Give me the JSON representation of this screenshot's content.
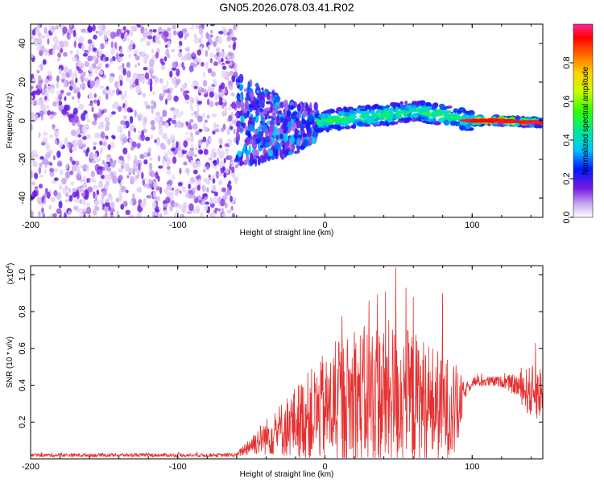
{
  "title": "GN05.2026.078.03.41.R02",
  "colors": {
    "snr_line": "#e53030",
    "axis": "#000000"
  },
  "chart_data": [
    {
      "type": "heatmap",
      "name": "spectrogram",
      "xlabel": "Height of straight line (km)",
      "ylabel": "Frequency (Hz)",
      "xlim": [
        -200,
        148
      ],
      "ylim": [
        -50,
        50
      ],
      "xticks": [
        -200,
        -100,
        0,
        100
      ],
      "xtick_labels": [
        "-200",
        "-100",
        "0",
        "100"
      ],
      "yticks": [
        -40,
        -20,
        0,
        20,
        40
      ],
      "ytick_labels": [
        "-40",
        "-20",
        "0",
        "20",
        "40"
      ],
      "colorbar": {
        "label": "Normalized spectral amplitude",
        "range": [
          0,
          1
        ],
        "ticks": [
          0.0,
          0.2,
          0.4,
          0.6,
          0.8
        ],
        "tick_labels": [
          "0.0",
          "0.2",
          "0.4",
          "0.6",
          "0.8"
        ]
      },
      "regions": [
        {
          "x_range": [
            -200,
            -60
          ],
          "freq_range": [
            -50,
            50
          ],
          "amplitude": "low",
          "description_level": 0.1
        },
        {
          "x_range": [
            -60,
            -10
          ],
          "freq_range": [
            -20,
            25
          ],
          "amplitude": "low-mid",
          "description_level": 0.2
        },
        {
          "x_range": [
            -10,
            100
          ],
          "freq_range": [
            -5,
            8
          ],
          "amplitude": "mid",
          "description_level": 0.35
        },
        {
          "x_range": [
            100,
            148
          ],
          "freq_range": [
            -2,
            2
          ],
          "amplitude": "high",
          "description_level": 0.9
        }
      ],
      "ridge": {
        "x": [
          -60,
          -40,
          -20,
          0,
          20,
          40,
          60,
          80,
          100,
          120,
          148
        ],
        "freq": [
          0,
          -2,
          -4,
          0,
          2,
          3,
          5,
          3,
          0,
          0,
          -1
        ]
      }
    },
    {
      "type": "line",
      "name": "snr",
      "xlabel": "Height of straight line (km)",
      "ylabel": "SNR (10 * v/v)",
      "y_multiplier": "(x10",
      "y_multiplier_exp": "4",
      "y_multiplier_close": ")",
      "xlim": [
        -200,
        148
      ],
      "ylim": [
        0,
        1.05
      ],
      "xticks": [
        -200,
        -100,
        0,
        100
      ],
      "xtick_labels": [
        "-200",
        "-100",
        "0",
        "100"
      ],
      "yticks": [
        0.2,
        0.4,
        0.6,
        0.8,
        1.0
      ],
      "ytick_labels": [
        "0.2",
        "0.4",
        "0.6",
        "0.8",
        "1.0"
      ],
      "envelope": {
        "x": [
          -200,
          -60,
          -50,
          -40,
          -30,
          -20,
          -10,
          0,
          10,
          20,
          30,
          40,
          50,
          60,
          70,
          80,
          90,
          95,
          100,
          110,
          120,
          130,
          140,
          148
        ],
        "mean": [
          0.02,
          0.02,
          0.08,
          0.12,
          0.16,
          0.2,
          0.24,
          0.26,
          0.3,
          0.32,
          0.34,
          0.34,
          0.34,
          0.32,
          0.3,
          0.28,
          0.26,
          0.36,
          0.42,
          0.42,
          0.42,
          0.4,
          0.36,
          0.36
        ],
        "spread": [
          0.01,
          0.01,
          0.06,
          0.1,
          0.15,
          0.2,
          0.25,
          0.28,
          0.35,
          0.38,
          0.4,
          0.42,
          0.4,
          0.38,
          0.35,
          0.3,
          0.25,
          0.04,
          0.03,
          0.03,
          0.03,
          0.06,
          0.15,
          0.15
        ]
      },
      "peaks": [
        {
          "x": 48,
          "y": 1.04
        },
        {
          "x": 41,
          "y": 0.91
        },
        {
          "x": 30,
          "y": 0.86
        },
        {
          "x": 55,
          "y": 0.93
        },
        {
          "x": 60,
          "y": 0.88
        },
        {
          "x": 80,
          "y": 0.9
        },
        {
          "x": 20,
          "y": 0.69
        },
        {
          "x": -2,
          "y": 0.56
        },
        {
          "x": 143,
          "y": 0.63
        }
      ]
    }
  ]
}
